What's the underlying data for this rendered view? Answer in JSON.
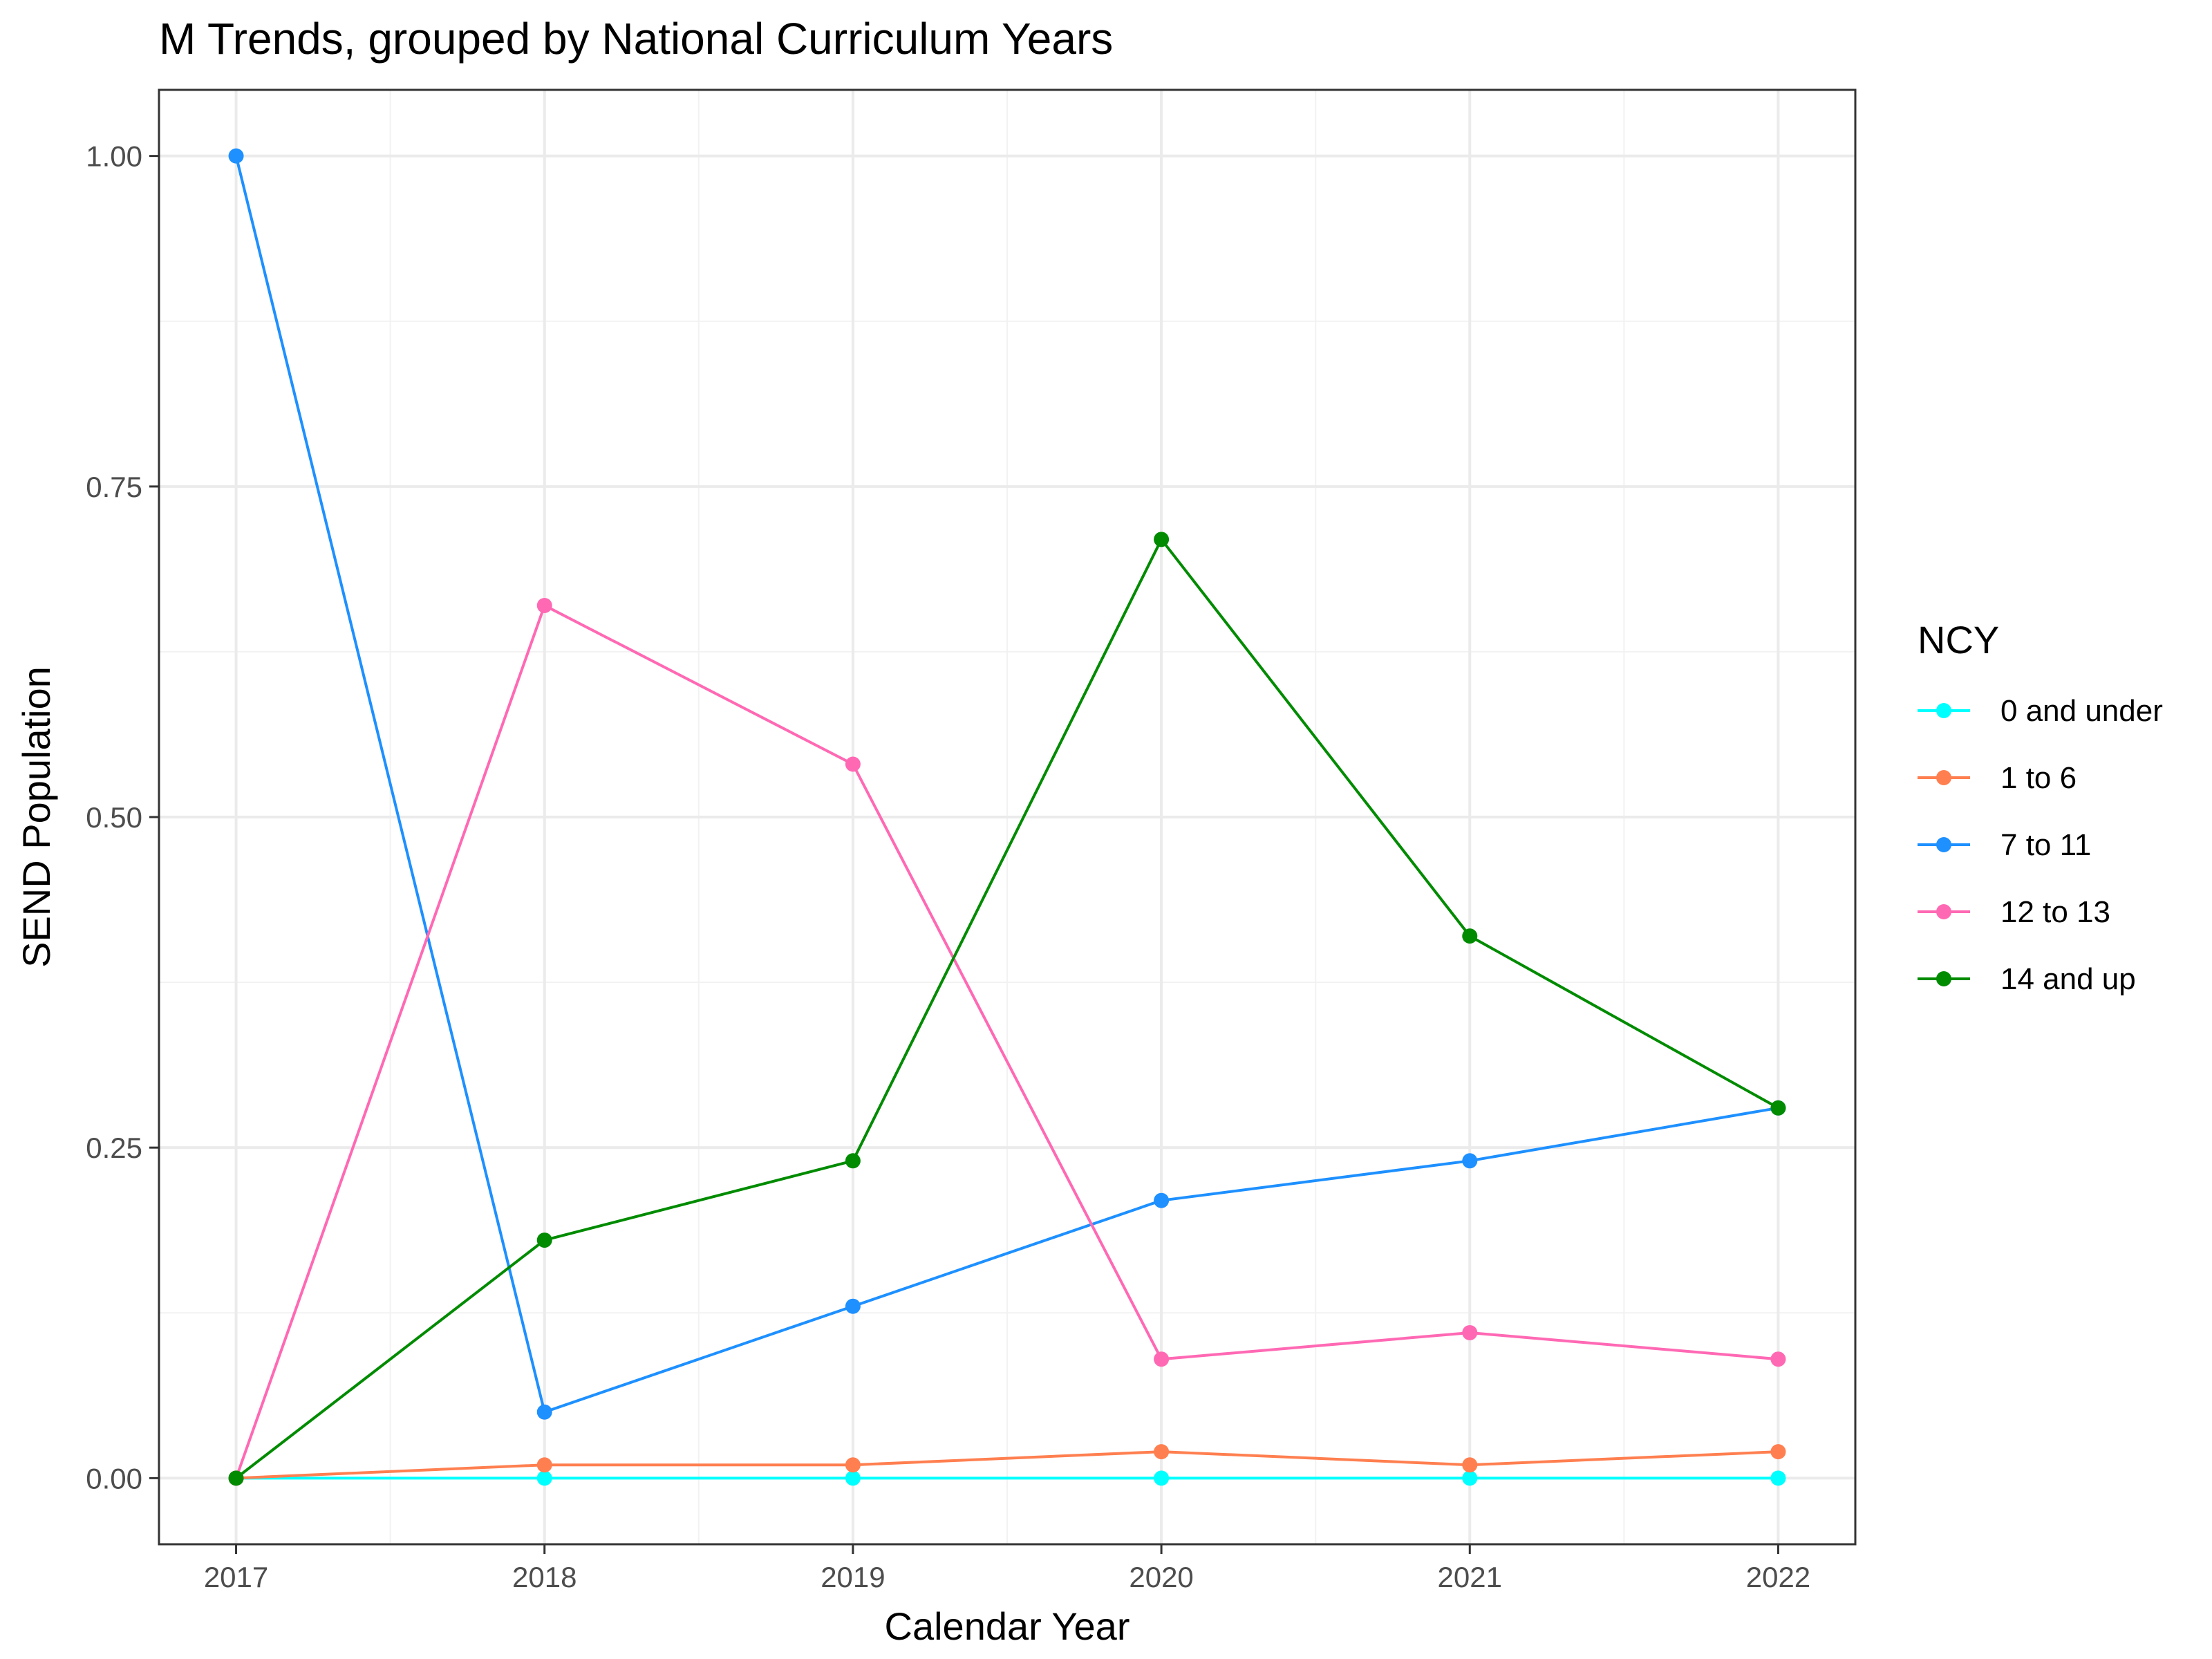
{
  "chart_data": {
    "type": "line",
    "title": "M Trends, grouped by National Curriculum Years",
    "xlabel": "Calendar Year",
    "ylabel": "SEND Population",
    "x": [
      2017,
      2018,
      2019,
      2020,
      2021,
      2022
    ],
    "x_tick_labels": [
      "2017",
      "2018",
      "2019",
      "2020",
      "2021",
      "2022"
    ],
    "ylim": [
      -0.05,
      1.05
    ],
    "y_ticks": [
      0.0,
      0.25,
      0.5,
      0.75,
      1.0
    ],
    "y_tick_labels": [
      "0.00",
      "0.25",
      "0.50",
      "0.75",
      "1.00"
    ],
    "grid": true,
    "legend": {
      "title": "NCY",
      "position": "right"
    },
    "series": [
      {
        "name": "0 and under",
        "color": "#00FFFF",
        "values": [
          0.0,
          0.0,
          0.0,
          0.0,
          0.0,
          0.0
        ]
      },
      {
        "name": "1 to 6",
        "color": "#FF7F50",
        "values": [
          0.0,
          0.01,
          0.01,
          0.02,
          0.01,
          0.02
        ]
      },
      {
        "name": "7 to 11",
        "color": "#1E90FF",
        "values": [
          1.0,
          0.05,
          0.13,
          0.21,
          0.24,
          0.28
        ]
      },
      {
        "name": "12 to 13",
        "color": "#FF69B4",
        "values": [
          0.0,
          0.66,
          0.54,
          0.09,
          0.11,
          0.09
        ]
      },
      {
        "name": "14 and up",
        "color": "#008B00",
        "values": [
          0.0,
          0.18,
          0.24,
          0.71,
          0.41,
          0.28
        ]
      }
    ]
  }
}
